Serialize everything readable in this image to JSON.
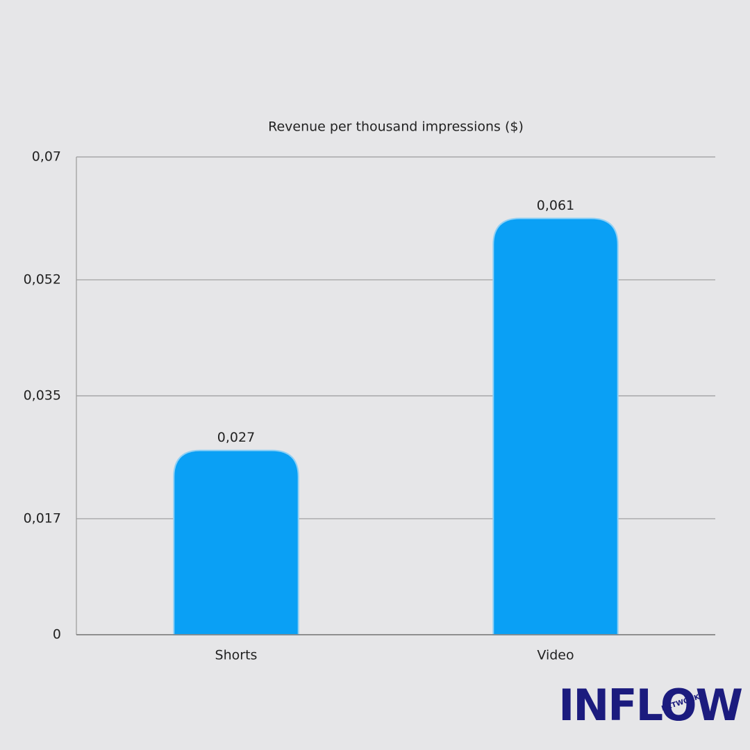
{
  "chart_data": {
    "type": "bar",
    "title": "Revenue per thousand impressions ($)",
    "categories": [
      "Shorts",
      "Video"
    ],
    "values": [
      0.027,
      0.061
    ],
    "value_labels": [
      "0,027",
      "0,061"
    ],
    "color": "#0aa0f5",
    "ylim": [
      0,
      0.07
    ],
    "yticks": [
      0,
      {
        "value": 0.017,
        "label": "0,017"
      },
      {
        "value": 0.035,
        "label": "0,035"
      },
      {
        "value": 0.052,
        "label": "0,052"
      },
      {
        "value": 0.07,
        "label": "0,07"
      }
    ],
    "grid": true
  },
  "logo": {
    "text": "INFLOW",
    "subtext": "NETWORK"
  }
}
